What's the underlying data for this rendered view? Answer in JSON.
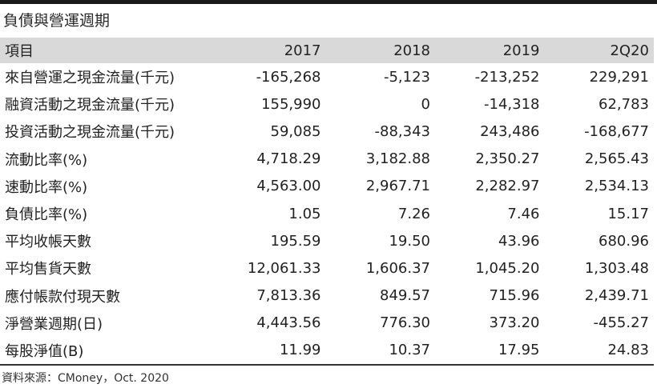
{
  "title": "負債與營運週期",
  "table": {
    "headers": [
      "項目",
      "2017",
      "2018",
      "2019",
      "2Q20"
    ],
    "rows": [
      [
        "來自營運之現金流量(千元)",
        "-165,268",
        "-5,123",
        "-213,252",
        "229,291"
      ],
      [
        "融資活動之現金流量(千元)",
        "155,990",
        "0",
        "-14,318",
        "62,783"
      ],
      [
        "投資活動之現金流量(千元)",
        "59,085",
        "-88,343",
        "243,486",
        "-168,677"
      ],
      [
        "流動比率(%)",
        "4,718.29",
        "3,182.88",
        "2,350.27",
        "2,565.43"
      ],
      [
        "速動比率(%)",
        "4,563.00",
        "2,967.71",
        "2,282.97",
        "2,534.13"
      ],
      [
        "負債比率(%)",
        "1.05",
        "7.26",
        "7.46",
        "15.17"
      ],
      [
        "平均收帳天數",
        "195.59",
        "19.50",
        "43.96",
        "680.96"
      ],
      [
        "平均售貨天數",
        "12,061.33",
        "1,606.37",
        "1,045.20",
        "1,303.48"
      ],
      [
        "應付帳款付現天數",
        "7,813.36",
        "849.57",
        "715.96",
        "2,439.71"
      ],
      [
        "淨營業週期(日)",
        "4,443.56",
        "776.30",
        "373.20",
        "-455.27"
      ],
      [
        "每股淨值(B)",
        "11.99",
        "10.37",
        "17.95",
        "24.83"
      ]
    ]
  },
  "source": "資料來源：CMoney，Oct. 2020",
  "colors": {
    "header_bg": "#d9d9d9",
    "top_bar": "#1a1a1a",
    "text": "#222222"
  }
}
